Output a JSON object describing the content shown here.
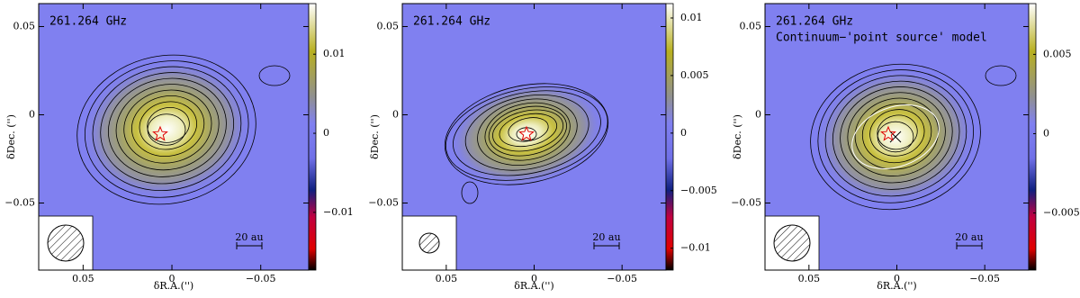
{
  "chart_data": [
    {
      "type": "image",
      "title": "261.264 GHz",
      "xlabel": "δR.A.('')",
      "ylabel": "δDec. ('')",
      "xlim": [
        0.075,
        -0.077
      ],
      "ylim": [
        -0.088,
        0.063
      ],
      "xticks": [
        0.05,
        0,
        {
          "value": -0.05,
          "label": "−0.05"
        }
      ],
      "yticks": [
        {
          "value": -0.05,
          "label": "−0.05"
        },
        0,
        0.05
      ],
      "clim": [
        -0.0173,
        0.0164
      ],
      "cticks": [
        {
          "value": -0.01,
          "label": "−0.01"
        },
        0,
        0.01
      ],
      "scalebar": "20 au"
    },
    {
      "type": "image",
      "title": "261.264 GHz",
      "xlabel": "δR.A.('')",
      "ylabel": "δDec. ('')",
      "xlim": [
        0.075,
        -0.075
      ],
      "ylim": [
        -0.088,
        0.063
      ],
      "xticks": [
        0.05,
        0,
        {
          "value": -0.05,
          "label": "−0.05"
        }
      ],
      "yticks": [
        {
          "value": -0.05,
          "label": "−0.05"
        },
        0,
        0.05
      ],
      "clim": [
        -0.0119,
        0.01125
      ],
      "cticks": [
        {
          "value": -0.01,
          "label": "−0.01"
        },
        {
          "value": -0.005,
          "label": "−0.005"
        },
        0,
        0.005,
        0.01
      ],
      "scalebar": "20 au"
    },
    {
      "type": "image",
      "title": "261.264 GHz",
      "subtitle": "Continuum−'point source' model",
      "xlabel": "δR.A.('')",
      "ylabel": "δDec. ('')",
      "xlim": [
        0.075,
        -0.075
      ],
      "ylim": [
        -0.088,
        0.063
      ],
      "xticks": [
        0.05,
        0,
        {
          "value": -0.05,
          "label": "−0.05"
        }
      ],
      "yticks": [
        {
          "value": -0.05,
          "label": "−0.05"
        },
        0,
        0.05
      ],
      "clim": [
        -0.0086,
        0.0082
      ],
      "cticks": [
        {
          "value": -0.005,
          "label": "−0.005"
        },
        0,
        0.005
      ],
      "scalebar": "20 au"
    }
  ]
}
